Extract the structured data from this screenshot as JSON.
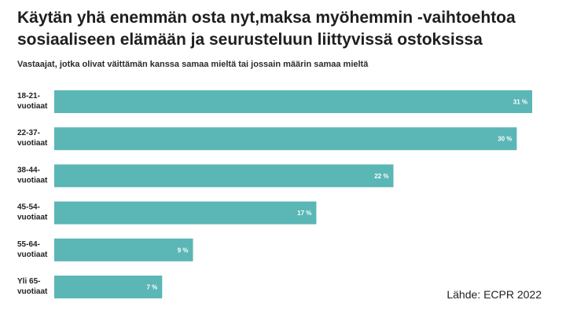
{
  "title": "Käytän yhä enemmän osta nyt,maksa myöhemmin -vaihtoehtoa sosiaaliseen elämään ja seurusteluun liittyvissä ostoksissa",
  "subtitle": "Vastaajat, jotka olivat väittämän kanssa samaa mieltä tai jossain määrin samaa mieltä",
  "source": "Lähde: ECPR 2022",
  "colors": {
    "bar": "#5bb6b6",
    "bar_label": "#ffffff",
    "text": "#222222"
  },
  "chart_data": {
    "type": "bar",
    "orientation": "horizontal",
    "categories": [
      [
        "18-21-",
        "vuotiaat"
      ],
      [
        "22-37-",
        "vuotiaat"
      ],
      [
        "38-44-",
        "vuotiaat"
      ],
      [
        "45-54-",
        "vuotiaat"
      ],
      [
        "55-64-",
        "vuotiaat"
      ],
      [
        "Yli 65-",
        "vuotiaat"
      ]
    ],
    "values": [
      31,
      30,
      22,
      17,
      9,
      7
    ],
    "value_labels": [
      "31 %",
      "30 %",
      "22 %",
      "17 %",
      "9 %",
      "7 %"
    ],
    "xlim": [
      0,
      31
    ],
    "grid": false,
    "legend": "none"
  }
}
